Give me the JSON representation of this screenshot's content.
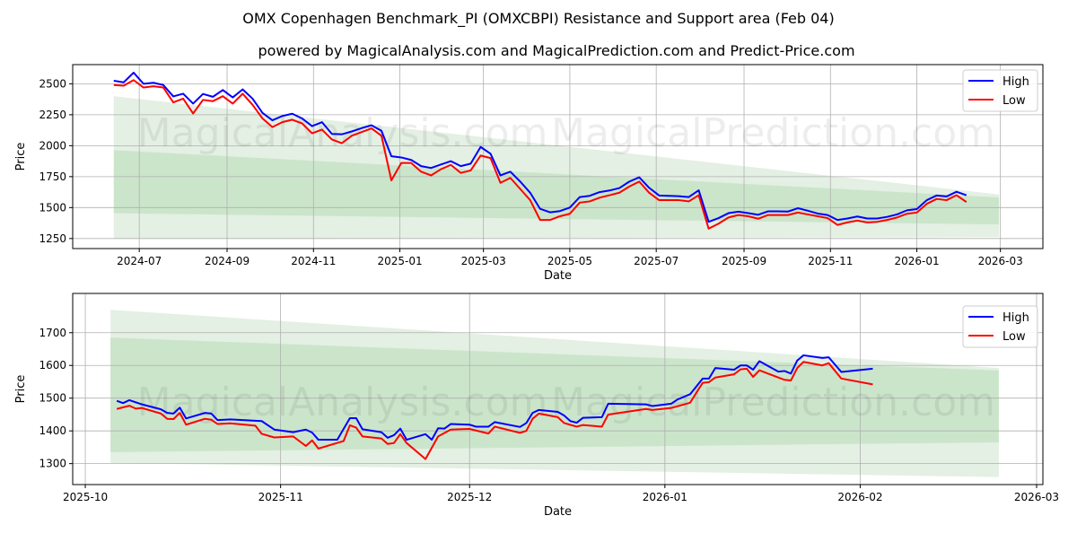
{
  "title": "OMX Copenhagen Benchmark_PI (OMXCBPI) Resistance and Support area (Feb 04)",
  "subtitle": "powered by MagicalAnalysis.com and MagicalPrediction.com and Predict-Price.com",
  "watermarks": [
    "MagicalAnalysis.com",
    "MagicalPrediction.com"
  ],
  "colors": {
    "high": "#0000ff",
    "low": "#ff0000",
    "band_outer": "#e3f0e3",
    "band_inner": "#cbe5cb"
  },
  "chart_data": [
    {
      "type": "line",
      "xlabel": "Date",
      "ylabel": "Price",
      "xlim": [
        "2024-05-15",
        "2026-03-31"
      ],
      "ylim": [
        1169,
        2655
      ],
      "grid": true,
      "legend_position": "top-right",
      "legend": [
        "High",
        "Low"
      ],
      "yticks": [
        1250,
        1500,
        1750,
        2000,
        2250,
        2500
      ],
      "xticks": [
        "2024-07",
        "2024-09",
        "2024-11",
        "2025-01",
        "2025-03",
        "2025-05",
        "2025-07",
        "2025-09",
        "2025-11",
        "2026-01",
        "2026-03"
      ],
      "bands": {
        "start": "2024-06-13",
        "end": "2026-02-28",
        "outer": {
          "upper": [
            2400,
            1606
          ],
          "lower": [
            1250,
            1261
          ]
        },
        "inner": {
          "upper": [
            1964,
            1582
          ],
          "lower": [
            1454,
            1364
          ]
        }
      },
      "series_sampling": {
        "start": "2024-06-13",
        "step_days": 7
      },
      "series": [
        {
          "name": "High",
          "values": [
            2525,
            2512,
            2590,
            2500,
            2508,
            2490,
            2398,
            2420,
            2340,
            2418,
            2395,
            2450,
            2390,
            2455,
            2380,
            2265,
            2205,
            2240,
            2258,
            2220,
            2158,
            2190,
            2095,
            2092,
            2115,
            2142,
            2165,
            2120,
            1915,
            1905,
            1885,
            1835,
            1820,
            1848,
            1875,
            1835,
            1855,
            1990,
            1935,
            1760,
            1790,
            1710,
            1620,
            1490,
            1462,
            1472,
            1500,
            1585,
            1595,
            1625,
            1638,
            1658,
            1710,
            1745,
            1660,
            1598,
            1595,
            1592,
            1585,
            1640,
            1385,
            1415,
            1455,
            1467,
            1455,
            1442,
            1470,
            1470,
            1468,
            1495,
            1475,
            1452,
            1440,
            1400,
            1412,
            1428,
            1412,
            1412,
            1425,
            1445,
            1478,
            1488,
            1560,
            1598,
            1590,
            1628,
            1600
          ]
        },
        {
          "name": "Low",
          "values": [
            2490,
            2485,
            2530,
            2470,
            2480,
            2470,
            2350,
            2380,
            2260,
            2370,
            2360,
            2400,
            2340,
            2420,
            2330,
            2220,
            2150,
            2190,
            2210,
            2180,
            2100,
            2130,
            2050,
            2020,
            2080,
            2110,
            2140,
            2080,
            1720,
            1860,
            1860,
            1790,
            1760,
            1810,
            1845,
            1780,
            1800,
            1920,
            1900,
            1700,
            1740,
            1650,
            1560,
            1400,
            1400,
            1430,
            1450,
            1540,
            1550,
            1580,
            1600,
            1620,
            1670,
            1710,
            1620,
            1560,
            1560,
            1560,
            1550,
            1600,
            1330,
            1370,
            1420,
            1440,
            1430,
            1410,
            1440,
            1440,
            1440,
            1460,
            1445,
            1430,
            1415,
            1360,
            1380,
            1395,
            1380,
            1385,
            1400,
            1420,
            1450,
            1460,
            1530,
            1570,
            1560,
            1600,
            1545
          ]
        }
      ]
    },
    {
      "type": "line",
      "xlabel": "Date",
      "ylabel": "Price",
      "xlim": [
        "2025-09-29",
        "2026-03-02"
      ],
      "ylim": [
        1236,
        1820
      ],
      "grid": true,
      "legend_position": "top-right",
      "legend": [
        "High",
        "Low"
      ],
      "yticks": [
        1300,
        1400,
        1500,
        1600,
        1700
      ],
      "xticks": [
        "2025-10",
        "2025-11",
        "2025-12",
        "2026-01",
        "2026-02",
        "2026-03"
      ],
      "bands": {
        "start": "2025-10-05",
        "end": "2026-02-23",
        "outer": {
          "upper": [
            1770,
            1592
          ],
          "lower": [
            1302,
            1259
          ]
        },
        "inner": {
          "upper": [
            1685,
            1585
          ],
          "lower": [
            1335,
            1365
          ]
        }
      },
      "series": [
        {
          "name": "High",
          "points": [
            [
              "2025-10-06",
              1492
            ],
            [
              "2025-10-07",
              1485
            ],
            [
              "2025-10-08",
              1494
            ],
            [
              "2025-10-10",
              1481
            ],
            [
              "2025-10-13",
              1466
            ],
            [
              "2025-10-14",
              1455
            ],
            [
              "2025-10-15",
              1453
            ],
            [
              "2025-10-16",
              1471
            ],
            [
              "2025-10-17",
              1438
            ],
            [
              "2025-10-20",
              1455
            ],
            [
              "2025-10-21",
              1453
            ],
            [
              "2025-10-22",
              1433
            ],
            [
              "2025-10-24",
              1435
            ],
            [
              "2025-10-29",
              1430
            ],
            [
              "2025-10-31",
              1404
            ],
            [
              "2025-11-03",
              1396
            ],
            [
              "2025-11-05",
              1404
            ],
            [
              "2025-11-06",
              1395
            ],
            [
              "2025-11-07",
              1373
            ],
            [
              "2025-11-10",
              1373
            ],
            [
              "2025-11-12",
              1439
            ],
            [
              "2025-11-13",
              1439
            ],
            [
              "2025-11-14",
              1405
            ],
            [
              "2025-11-17",
              1396
            ],
            [
              "2025-11-18",
              1379
            ],
            [
              "2025-11-19",
              1387
            ],
            [
              "2025-11-20",
              1407
            ],
            [
              "2025-11-21",
              1373
            ],
            [
              "2025-11-24",
              1390
            ],
            [
              "2025-11-25",
              1373
            ],
            [
              "2025-11-26",
              1408
            ],
            [
              "2025-11-27",
              1407
            ],
            [
              "2025-11-28",
              1421
            ],
            [
              "2025-12-01",
              1419
            ],
            [
              "2025-12-02",
              1413
            ],
            [
              "2025-12-04",
              1413
            ],
            [
              "2025-12-05",
              1427
            ],
            [
              "2025-12-09",
              1412
            ],
            [
              "2025-12-10",
              1424
            ],
            [
              "2025-12-11",
              1455
            ],
            [
              "2025-12-12",
              1464
            ],
            [
              "2025-12-15",
              1458
            ],
            [
              "2025-12-16",
              1447
            ],
            [
              "2025-12-17",
              1430
            ],
            [
              "2025-12-18",
              1425
            ],
            [
              "2025-12-19",
              1440
            ],
            [
              "2025-12-22",
              1442
            ],
            [
              "2025-12-23",
              1483
            ],
            [
              "2025-12-29",
              1481
            ],
            [
              "2025-12-30",
              1476
            ],
            [
              "2026-01-02",
              1483
            ],
            [
              "2026-01-03",
              1496
            ],
            [
              "2026-01-05",
              1512
            ],
            [
              "2026-01-07",
              1560
            ],
            [
              "2026-01-08",
              1560
            ],
            [
              "2026-01-09",
              1592
            ],
            [
              "2026-01-12",
              1587
            ],
            [
              "2026-01-13",
              1600
            ],
            [
              "2026-01-14",
              1600
            ],
            [
              "2026-01-15",
              1587
            ],
            [
              "2026-01-16",
              1613
            ],
            [
              "2026-01-19",
              1581
            ],
            [
              "2026-01-20",
              1583
            ],
            [
              "2026-01-21",
              1575
            ],
            [
              "2026-01-22",
              1615
            ],
            [
              "2026-01-23",
              1631
            ],
            [
              "2026-01-26",
              1623
            ],
            [
              "2026-01-27",
              1625
            ],
            [
              "2026-01-29",
              1580
            ],
            [
              "2026-02-03",
              1590
            ]
          ]
        },
        {
          "name": "Low",
          "points": [
            [
              "2025-10-06",
              1467
            ],
            [
              "2025-10-08",
              1477
            ],
            [
              "2025-10-09",
              1468
            ],
            [
              "2025-10-10",
              1470
            ],
            [
              "2025-10-13",
              1453
            ],
            [
              "2025-10-14",
              1437
            ],
            [
              "2025-10-15",
              1436
            ],
            [
              "2025-10-16",
              1455
            ],
            [
              "2025-10-17",
              1419
            ],
            [
              "2025-10-20",
              1437
            ],
            [
              "2025-10-21",
              1434
            ],
            [
              "2025-10-22",
              1421
            ],
            [
              "2025-10-24",
              1423
            ],
            [
              "2025-10-28",
              1416
            ],
            [
              "2025-10-29",
              1391
            ],
            [
              "2025-10-31",
              1380
            ],
            [
              "2025-11-03",
              1383
            ],
            [
              "2025-11-05",
              1354
            ],
            [
              "2025-11-06",
              1371
            ],
            [
              "2025-11-07",
              1346
            ],
            [
              "2025-11-11",
              1369
            ],
            [
              "2025-11-12",
              1417
            ],
            [
              "2025-11-13",
              1410
            ],
            [
              "2025-11-14",
              1383
            ],
            [
              "2025-11-17",
              1377
            ],
            [
              "2025-11-18",
              1360
            ],
            [
              "2025-11-19",
              1363
            ],
            [
              "2025-11-20",
              1390
            ],
            [
              "2025-11-21",
              1363
            ],
            [
              "2025-11-24",
              1314
            ],
            [
              "2025-11-26",
              1383
            ],
            [
              "2025-11-28",
              1404
            ],
            [
              "2025-12-01",
              1406
            ],
            [
              "2025-12-04",
              1392
            ],
            [
              "2025-12-05",
              1413
            ],
            [
              "2025-12-09",
              1394
            ],
            [
              "2025-12-10",
              1400
            ],
            [
              "2025-12-11",
              1437
            ],
            [
              "2025-12-12",
              1453
            ],
            [
              "2025-12-15",
              1442
            ],
            [
              "2025-12-16",
              1424
            ],
            [
              "2025-12-18",
              1413
            ],
            [
              "2025-12-19",
              1418
            ],
            [
              "2025-12-22",
              1413
            ],
            [
              "2025-12-23",
              1450
            ],
            [
              "2025-12-29",
              1467
            ],
            [
              "2025-12-30",
              1464
            ],
            [
              "2026-01-02",
              1470
            ],
            [
              "2026-01-05",
              1486
            ],
            [
              "2026-01-07",
              1547
            ],
            [
              "2026-01-08",
              1549
            ],
            [
              "2026-01-09",
              1563
            ],
            [
              "2026-01-12",
              1573
            ],
            [
              "2026-01-13",
              1588
            ],
            [
              "2026-01-14",
              1590
            ],
            [
              "2026-01-15",
              1565
            ],
            [
              "2026-01-16",
              1585
            ],
            [
              "2026-01-19",
              1563
            ],
            [
              "2026-01-20",
              1556
            ],
            [
              "2026-01-21",
              1554
            ],
            [
              "2026-01-22",
              1592
            ],
            [
              "2026-01-23",
              1611
            ],
            [
              "2026-01-26",
              1600
            ],
            [
              "2026-01-27",
              1607
            ],
            [
              "2026-01-29",
              1560
            ],
            [
              "2026-02-03",
              1542
            ]
          ]
        }
      ]
    }
  ]
}
